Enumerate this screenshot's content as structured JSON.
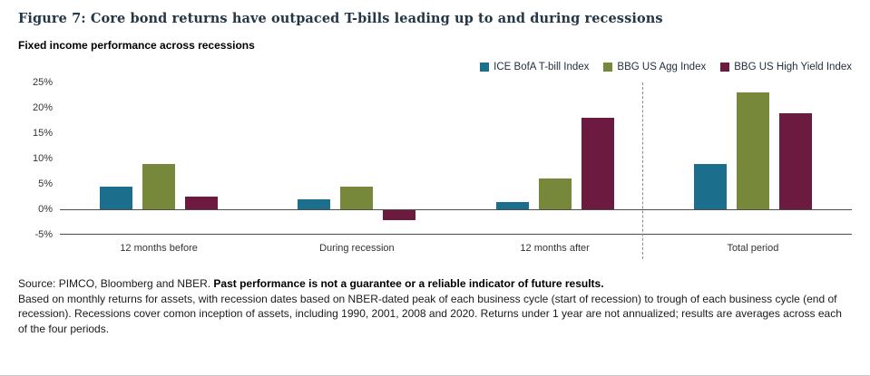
{
  "figure": {
    "title": "Figure 7: Core bond returns have outpaced T-bills leading up to and during recessions",
    "subtitle": "Fixed income performance across recessions"
  },
  "chart_data": {
    "type": "bar",
    "categories": [
      "12 months before",
      "During recession",
      "12 months after",
      "Total period"
    ],
    "series": [
      {
        "name": "ICE BofA T-bill Index",
        "color": "#1b6f8d",
        "values": [
          4.5,
          2.0,
          1.5,
          9.0
        ]
      },
      {
        "name": "BBG US Agg Index",
        "color": "#77883b",
        "values": [
          9.0,
          4.5,
          6.0,
          23.0
        ]
      },
      {
        "name": "BBG US High Yield Index",
        "color": "#6d1a41",
        "values": [
          2.5,
          -2.0,
          18.0,
          19.0
        ]
      }
    ],
    "ylim": [
      -5,
      25
    ],
    "ytick_values": [
      25,
      20,
      15,
      10,
      5,
      0,
      -5
    ],
    "yticks": [
      "25%",
      "20%",
      "15%",
      "10%",
      "5%",
      "0%",
      "-5%"
    ],
    "grid": false,
    "legend_position": "top-right",
    "divider_after_category": 2
  },
  "footer": {
    "source_prefix": "Source: PIMCO, Bloomberg and NBER. ",
    "source_bold": "Past performance is not a guarantee or a reliable indicator of future results.",
    "body": "Based on monthly returns for assets, with recession dates based on NBER-dated peak of each business cycle (start of recession) to trough of each business cycle (end of recession). Recessions cover comon inception of assets, including 1990, 2001, 2008 and 2020. Returns under 1 year are not annualized; results are averages across each of the four periods."
  }
}
